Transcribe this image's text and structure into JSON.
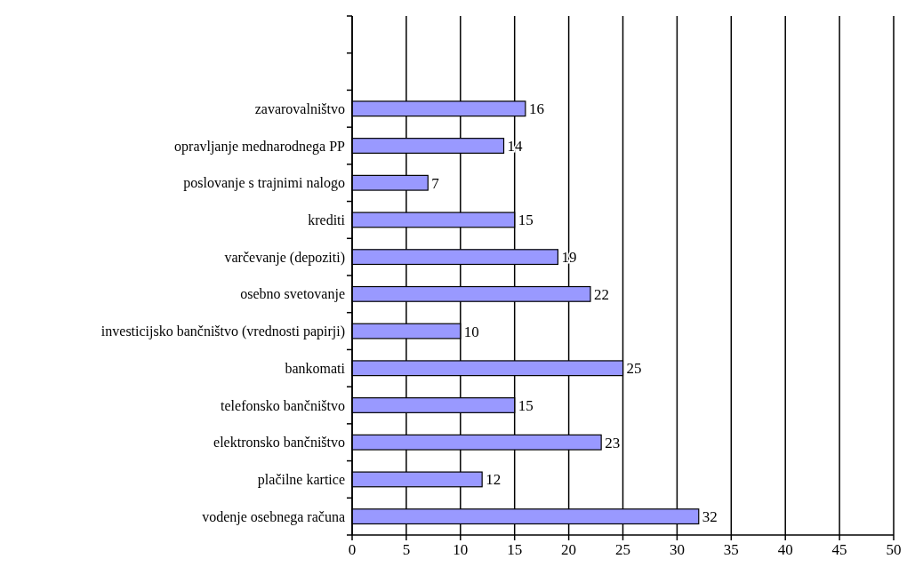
{
  "chart_data": {
    "type": "bar",
    "orientation": "horizontal",
    "categories": [
      null,
      null,
      "zavarovalništvo",
      "opravljanje mednarodnega PP",
      "poslovanje s trajnimi nalogo",
      "krediti",
      "varčevanje (depoziti)",
      "osebno svetovanje",
      "investicijsko bančništvo (vrednosti papirji)",
      "bankomati",
      "telefonsko bančništvo",
      "elektronsko bančništvo",
      "plačilne kartice",
      "vodenje osebnega računa"
    ],
    "values": [
      null,
      null,
      16,
      14,
      7,
      15,
      19,
      22,
      10,
      25,
      15,
      23,
      12,
      32
    ],
    "color": "#9999ff",
    "xlim": [
      0,
      50
    ],
    "xticks": [
      0,
      5,
      10,
      15,
      20,
      25,
      30,
      35,
      40,
      45,
      50
    ],
    "grid": "x",
    "data_labels": true
  }
}
